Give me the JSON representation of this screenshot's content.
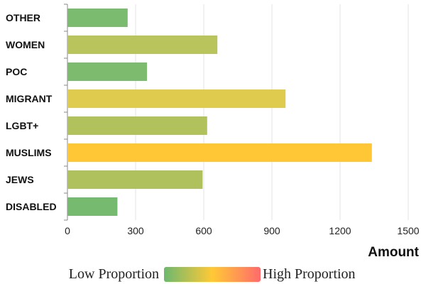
{
  "chart_data": {
    "type": "bar",
    "orientation": "horizontal",
    "categories": [
      "OTHER",
      "WOMEN",
      "POC",
      "MIGRANT",
      "LGBT+",
      "MUSLIMS",
      "JEWS",
      "DISABLED"
    ],
    "values": [
      265,
      660,
      350,
      960,
      615,
      1340,
      595,
      220
    ],
    "xlim": [
      0,
      1500
    ],
    "xticks": [
      0,
      300,
      600,
      900,
      1200,
      1500
    ],
    "xlabel": "Amount",
    "grid": "vertical",
    "legend": {
      "low_label": "Low Proportion",
      "high_label": "High Proportion",
      "placement": "bottom",
      "gradient": [
        "#6db86f",
        "#ffc936",
        "#ff6b6b"
      ]
    },
    "bar_colors": [
      "#7bbb6f",
      "#b9c45c",
      "#7dbb6e",
      "#dfcb4e",
      "#b1c25d",
      "#ffc636",
      "#aec15d",
      "#76ba70"
    ]
  }
}
